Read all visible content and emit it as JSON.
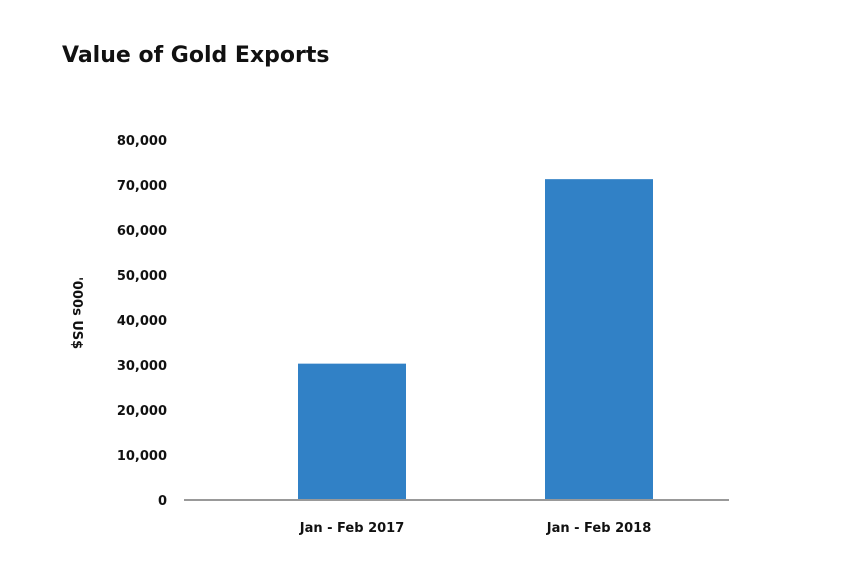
{
  "chart_data": {
    "type": "bar",
    "title": "Value of Gold Exports",
    "xlabel": "",
    "ylabel": "'000s US$",
    "categories": [
      "Jan - Feb 2017",
      "Jan - Feb 2018"
    ],
    "values": [
      30300,
      71300
    ],
    "ylim": [
      0,
      80000
    ],
    "yticks": [
      0,
      10000,
      20000,
      30000,
      40000,
      50000,
      60000,
      70000,
      80000
    ],
    "ytick_labels": [
      "0",
      "10,000",
      "20,000",
      "30,000",
      "40,000",
      "50,000",
      "60,000",
      "70,000",
      "80,000"
    ],
    "grid": false,
    "legend": "none",
    "bar_color": "#3181c6",
    "axis_color": "#999999"
  }
}
